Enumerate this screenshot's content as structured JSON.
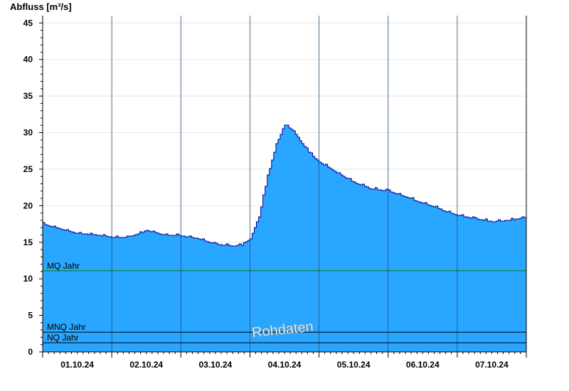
{
  "chart_data": {
    "type": "area",
    "ylabel": "Abfluss [m³/s]",
    "ylim": [
      0,
      46
    ],
    "yticks": [
      0,
      5,
      10,
      15,
      20,
      25,
      30,
      35,
      40,
      45
    ],
    "xlim": [
      "2024-09-30 12:00",
      "2024-10-07 12:00"
    ],
    "xticks": [
      {
        "label": "01.10.24",
        "at": "2024-10-01 00:00"
      },
      {
        "label": "02.10.24",
        "at": "2024-10-02 00:00"
      },
      {
        "label": "03.10.24",
        "at": "2024-10-03 00:00"
      },
      {
        "label": "04.10.24",
        "at": "2024-10-04 00:00"
      },
      {
        "label": "05.10.24",
        "at": "2024-10-05 00:00"
      },
      {
        "label": "06.10.24",
        "at": "2024-10-06 00:00"
      },
      {
        "label": "07.10.24",
        "at": "2024-10-07 00:00"
      }
    ],
    "day_lines": [
      "2024-10-01 12:00",
      "2024-10-02 12:00",
      "2024-10-03 12:00",
      "2024-10-04 12:00",
      "2024-10-05 12:00",
      "2024-10-06 12:00"
    ],
    "grid": "horizontal",
    "fill_color": "#29a6ff",
    "line_color": "#00008b",
    "series": [
      {
        "x": [
          "2024-09-30 12:00",
          "2024-09-30 18:00",
          "2024-10-01 00:00",
          "2024-10-01 06:00",
          "2024-10-01 12:00",
          "2024-10-01 18:00",
          "2024-10-02 00:00",
          "2024-10-02 06:00",
          "2024-10-02 12:00",
          "2024-10-02 18:00",
          "2024-10-03 00:00",
          "2024-10-03 06:00",
          "2024-10-03 09:00",
          "2024-10-03 12:00",
          "2024-10-03 15:00",
          "2024-10-03 18:00",
          "2024-10-03 21:00",
          "2024-10-04 00:00",
          "2024-10-04 03:00",
          "2024-10-04 06:00",
          "2024-10-04 09:00",
          "2024-10-04 12:00",
          "2024-10-04 18:00",
          "2024-10-05 00:00",
          "2024-10-05 06:00",
          "2024-10-05 12:00",
          "2024-10-05 18:00",
          "2024-10-06 00:00",
          "2024-10-06 06:00",
          "2024-10-06 12:00",
          "2024-10-06 18:00",
          "2024-10-07 00:00",
          "2024-10-07 06:00",
          "2024-10-07 12:00"
        ],
        "y": [
          17.5,
          16.8,
          16.2,
          16.0,
          15.7,
          15.7,
          16.6,
          16.0,
          15.9,
          15.5,
          14.7,
          14.5,
          14.6,
          15.5,
          18.5,
          24.0,
          28.5,
          31.0,
          30.2,
          28.5,
          27.0,
          26.0,
          24.5,
          23.2,
          22.3,
          22.0,
          21.2,
          20.3,
          19.5,
          18.7,
          18.2,
          17.8,
          18.0,
          18.4
        ]
      }
    ],
    "reference_lines": [
      {
        "label": "MQ Jahr",
        "value": 11.1,
        "color": "#008000"
      },
      {
        "label": "MNQ Jahr",
        "value": 2.7,
        "color": "#000000"
      },
      {
        "label": "NQ Jahr",
        "value": 1.25,
        "color": "#000000"
      }
    ],
    "watermark": "Rohdaten"
  }
}
